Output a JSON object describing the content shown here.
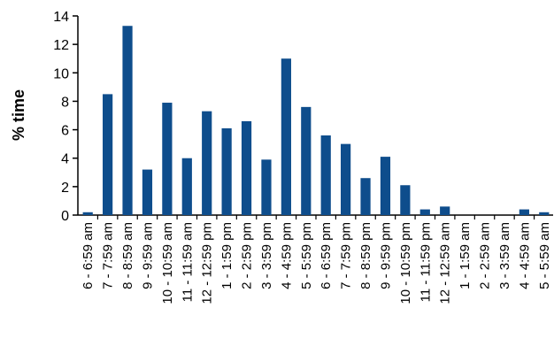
{
  "chart_data": {
    "type": "bar",
    "title": "",
    "xlabel": "",
    "ylabel": "% time",
    "ylim": [
      0,
      14
    ],
    "yticks": [
      0,
      2,
      4,
      6,
      8,
      10,
      12,
      14
    ],
    "grid": false,
    "legend": "none",
    "bar_color": "#0e4d8c",
    "categories": [
      "6 - 6:59 am",
      "7 - 7:59 am",
      "8 - 8:59 am",
      "9 - 9:59 am",
      "10 - 10:59 am",
      "11 - 11:59 am",
      "12 - 12:59 pm",
      "1 - 1:59 pm",
      "2 - 2:59 pm",
      "3 - 3:59 pm",
      "4 - 4:59 pm",
      "5 - 5:59 pm",
      "6 - 6:59 pm",
      "7 - 7:59 pm",
      "8 - 8:59 pm",
      "9 - 9:59 pm",
      "10 - 10:59 pm",
      "11 - 11:59 pm",
      "12 - 12:59 am",
      "1 - 1:59 am",
      "2 - 2:59 am",
      "3 - 3:59 am",
      "4 - 4:59 am",
      "5 - 5:59 am"
    ],
    "values": [
      0.2,
      8.5,
      13.3,
      3.2,
      7.9,
      4.0,
      7.3,
      6.1,
      6.6,
      3.9,
      11.0,
      7.6,
      5.6,
      5.0,
      2.6,
      4.1,
      2.1,
      0.4,
      0.6,
      0.0,
      0.0,
      0.0,
      0.4,
      0.2
    ]
  }
}
